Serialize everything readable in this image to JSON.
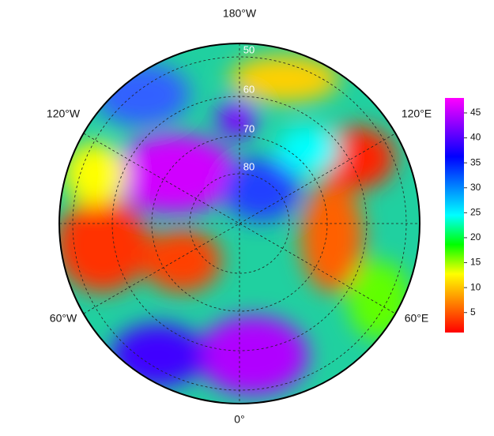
{
  "map": {
    "longitude_labels": [
      "180°W",
      "120°E",
      "60°E",
      "0°",
      "60°W",
      "120°W"
    ],
    "latitude_labels": [
      "50",
      "60",
      "70",
      "80"
    ],
    "colorbar": {
      "lim": [
        1,
        48
      ],
      "ticks": [
        5,
        10,
        15,
        20,
        25,
        30,
        35,
        40,
        45
      ],
      "colors": [
        "#ff0000",
        "#ff8000",
        "#ffff00",
        "#00ff00",
        "#00ffff",
        "#0080ff",
        "#0000ff",
        "#8000ff",
        "#ff00ff"
      ]
    }
  }
}
